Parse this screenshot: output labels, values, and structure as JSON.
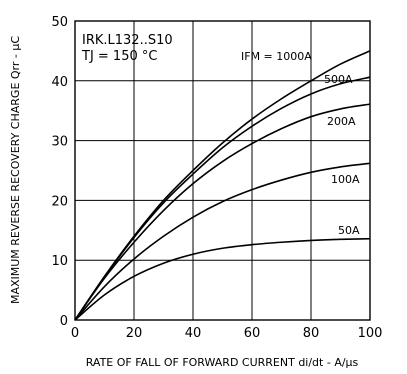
{
  "chart_data": {
    "type": "line",
    "xlabel": "RATE OF FALL OF FORWARD CURRENT di/dt - A/µs",
    "ylabel": "MAXIMUM REVERSE RECOVERY CHARGE Qrr - µC",
    "xlim": [
      0,
      100
    ],
    "ylim": [
      0,
      50
    ],
    "xticks": [
      0,
      20,
      40,
      60,
      80,
      100
    ],
    "yticks": [
      0,
      10,
      20,
      30,
      40,
      50
    ],
    "grid": true,
    "annotations": [
      "IRK.L132..S10",
      "TJ = 150 °C"
    ],
    "series": [
      {
        "name": "IFM = 1000A",
        "x": [
          0,
          10,
          20,
          30,
          40,
          50,
          60,
          70,
          80,
          90,
          100
        ],
        "y": [
          0,
          7.3,
          14.0,
          20.0,
          25.0,
          29.6,
          33.6,
          37.0,
          40.0,
          42.8,
          45.0
        ]
      },
      {
        "name": "500A",
        "x": [
          0,
          10,
          20,
          30,
          40,
          50,
          60,
          70,
          80,
          90,
          100
        ],
        "y": [
          0,
          7.2,
          13.8,
          19.6,
          24.4,
          28.8,
          32.4,
          35.4,
          37.8,
          39.5,
          40.6
        ]
      },
      {
        "name": "200A",
        "x": [
          0,
          10,
          20,
          30,
          40,
          50,
          60,
          70,
          80,
          90,
          100
        ],
        "y": [
          0,
          7.0,
          13.0,
          18.3,
          22.8,
          26.5,
          29.5,
          32.0,
          34.0,
          35.3,
          36.1
        ]
      },
      {
        "name": "100A",
        "x": [
          0,
          10,
          20,
          30,
          40,
          50,
          60,
          70,
          80,
          90,
          100
        ],
        "y": [
          0,
          5.6,
          10.2,
          14.0,
          17.2,
          19.8,
          21.8,
          23.4,
          24.7,
          25.6,
          26.2
        ]
      },
      {
        "name": "50A",
        "x": [
          0,
          10,
          20,
          30,
          40,
          50,
          60,
          70,
          80,
          90,
          100
        ],
        "y": [
          0,
          4.2,
          7.3,
          9.5,
          11.0,
          12.0,
          12.6,
          13.0,
          13.3,
          13.5,
          13.6
        ]
      }
    ]
  }
}
